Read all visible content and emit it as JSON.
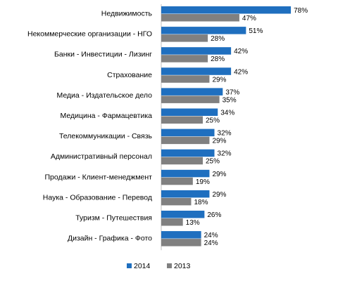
{
  "chart_data": {
    "type": "bar",
    "orientation": "horizontal",
    "title": "",
    "xlabel": "",
    "ylabel": "",
    "value_suffix": "%",
    "categories": [
      "Недвижимость",
      "Некоммерческие организации - НГО",
      "Банки - Инвестиции - Лизинг",
      "Страхование",
      "Медиа - Издательское дело",
      "Медицина - Фармацевтика",
      "Телекоммуникации - Связь",
      "Административный персонал",
      "Продажи - Клиент-менеджмент",
      "Наука - Образование - Перевод",
      "Туризм - Путешествия",
      "Дизайн - Графика - Фото"
    ],
    "series": [
      {
        "name": "2014",
        "color": "#1f6fbf",
        "values": [
          78,
          51,
          42,
          42,
          37,
          34,
          32,
          32,
          29,
          29,
          26,
          24
        ]
      },
      {
        "name": "2013",
        "color": "#808080",
        "values": [
          47,
          28,
          28,
          29,
          35,
          25,
          29,
          25,
          19,
          18,
          13,
          24
        ]
      }
    ],
    "xlim": [
      0,
      100
    ],
    "grid": false,
    "legend_position": "bottom"
  }
}
